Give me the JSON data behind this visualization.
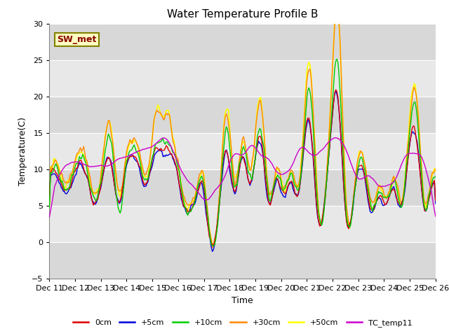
{
  "title": "Water Temperature Profile B",
  "xlabel": "Time",
  "ylabel": "Temperature(C)",
  "ylim": [
    -5,
    30
  ],
  "xlim": [
    0,
    360
  ],
  "annotation_text": "SW_met",
  "annotation_bg": "#FFFFC0",
  "annotation_border": "#808000",
  "annotation_text_color": "#880000",
  "series": {
    "0cm": {
      "color": "#DD0000",
      "lw": 1.0,
      "zorder": 5
    },
    "+5cm": {
      "color": "#0000DD",
      "lw": 1.0,
      "zorder": 4
    },
    "+10cm": {
      "color": "#00CC00",
      "lw": 1.0,
      "zorder": 6
    },
    "+30cm": {
      "color": "#FF8800",
      "lw": 1.0,
      "zorder": 3
    },
    "+50cm": {
      "color": "#FFFF00",
      "lw": 1.2,
      "zorder": 2
    },
    "TC_temp11": {
      "color": "#CC00CC",
      "lw": 1.0,
      "zorder": 7
    }
  },
  "legend_labels": [
    "0cm",
    "+5cm",
    "+10cm",
    "+30cm",
    "+50cm",
    "TC_temp11"
  ],
  "legend_colors": [
    "#DD0000",
    "#0000DD",
    "#00CC00",
    "#FF8800",
    "#FFFF00",
    "#CC00CC"
  ],
  "tick_dates": [
    "Dec 11",
    "Dec 12",
    "Dec 13",
    "Dec 14",
    "Dec 15",
    "Dec 16",
    "Dec 17",
    "Dec 18",
    "Dec 19",
    "Dec 20",
    "Dec 21",
    "Dec 22",
    "Dec 23",
    "Dec 24",
    "Dec 25",
    "Dec 26"
  ],
  "tick_positions": [
    0,
    24,
    48,
    72,
    96,
    120,
    144,
    168,
    192,
    216,
    240,
    264,
    288,
    312,
    336,
    360
  ],
  "band_edges": [
    -5,
    0,
    5,
    10,
    15,
    20,
    25,
    30
  ],
  "band_colors": [
    "#D8D8D8",
    "#E8E8E8",
    "#D8D8D8",
    "#E8E8E8",
    "#D8D8D8",
    "#E8E8E8",
    "#D8D8D8"
  ],
  "figsize": [
    6.4,
    4.8
  ],
  "dpi": 100
}
